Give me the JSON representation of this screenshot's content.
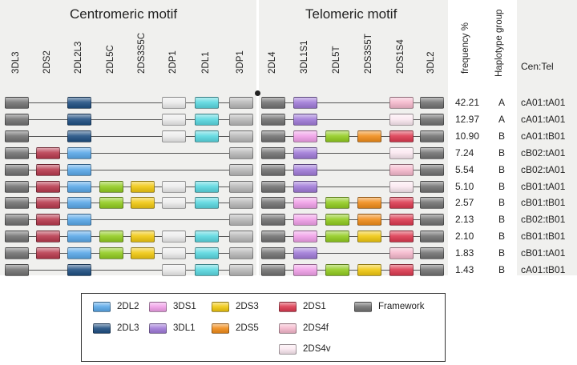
{
  "titles": {
    "centromeric": "Centromeric motif",
    "telomeric": "Telomeric motif"
  },
  "genes": [
    "3DL3",
    "2DS2",
    "2DL2L3",
    "2DL5C",
    "2DS3S5C",
    "2DP1",
    "2DL1",
    "3DP1",
    "2DL4",
    "3DL1S1",
    "2DL5T",
    "2DS3S5T",
    "2DS1S4",
    "3DL2"
  ],
  "columns": {
    "frequency": "frequency %",
    "haplotype": "Haplotype group",
    "centel": "Cen:Tel"
  },
  "colors": {
    "F": "#727272",
    "2DL2": "#5aa8e8",
    "2DL3": "#1f4f82",
    "3DS1": "#f0a0e8",
    "3DL1": "#a07ad8",
    "2DS3": "#f0c810",
    "2DS5": "#f08c1a",
    "2DS1": "#dc3a50",
    "2DS4f": "#f5b8cc",
    "2DS4v": "#fbe8f0",
    "2DL5": "#92cc20",
    "2DS2": "#b83a4e",
    "2DP1": "#ececec",
    "2DL1": "#5ad8e0",
    "3DP1": "#b8b8b8"
  },
  "rows": [
    {
      "genes": [
        "F",
        null,
        "2DL3",
        null,
        null,
        "2DP1",
        "2DL1",
        "3DP1",
        "F",
        "3DL1",
        null,
        null,
        "2DS4f",
        "F"
      ],
      "freq": "42.21",
      "group": "A",
      "centel": "cA01:tA01"
    },
    {
      "genes": [
        "F",
        null,
        "2DL3",
        null,
        null,
        "2DP1",
        "2DL1",
        "3DP1",
        "F",
        "3DL1",
        null,
        null,
        "2DS4v",
        "F"
      ],
      "freq": "12.97",
      "group": "A",
      "centel": "cA01:tA01"
    },
    {
      "genes": [
        "F",
        null,
        "2DL3",
        null,
        null,
        "2DP1",
        "2DL1",
        "3DP1",
        "F",
        "3DS1",
        "2DL5",
        "2DS5",
        "2DS1",
        "F"
      ],
      "freq": "10.90",
      "group": "B",
      "centel": "cA01:tB01"
    },
    {
      "genes": [
        "F",
        "2DS2",
        "2DL2",
        null,
        null,
        null,
        null,
        "3DP1",
        "F",
        "3DL1",
        null,
        null,
        "2DS4v",
        "F"
      ],
      "freq": "7.24",
      "group": "B",
      "centel": "cB02:tA01"
    },
    {
      "genes": [
        "F",
        "2DS2",
        "2DL2",
        null,
        null,
        null,
        null,
        "3DP1",
        "F",
        "3DL1",
        null,
        null,
        "2DS4f",
        "F"
      ],
      "freq": "5.54",
      "group": "B",
      "centel": "cB02:tA01"
    },
    {
      "genes": [
        "F",
        "2DS2",
        "2DL2",
        "2DL5",
        "2DS3",
        "2DP1",
        "2DL1",
        "3DP1",
        "F",
        "3DL1",
        null,
        null,
        "2DS4v",
        "F"
      ],
      "freq": "5.10",
      "group": "B",
      "centel": "cB01:tA01"
    },
    {
      "genes": [
        "F",
        "2DS2",
        "2DL2",
        "2DL5",
        "2DS3",
        "2DP1",
        "2DL1",
        "3DP1",
        "F",
        "3DS1",
        "2DL5",
        "2DS5",
        "2DS1",
        "F"
      ],
      "freq": "2.57",
      "group": "B",
      "centel": "cB01:tB01"
    },
    {
      "genes": [
        "F",
        "2DS2",
        "2DL2",
        null,
        null,
        null,
        null,
        "3DP1",
        "F",
        "3DS1",
        "2DL5",
        "2DS5",
        "2DS1",
        "F"
      ],
      "freq": "2.13",
      "group": "B",
      "centel": "cB02:tB01"
    },
    {
      "genes": [
        "F",
        "2DS2",
        "2DL2",
        "2DL5",
        "2DS3",
        "2DP1",
        "2DL1",
        "3DP1",
        "F",
        "3DS1",
        "2DL5",
        "2DS3",
        "2DS1",
        "F"
      ],
      "freq": "2.10",
      "group": "B",
      "centel": "cB01:tB01"
    },
    {
      "genes": [
        "F",
        "2DS2",
        "2DL2",
        "2DL5",
        "2DS3",
        "2DP1",
        "2DL1",
        "3DP1",
        "F",
        "3DL1",
        null,
        null,
        "2DS4f",
        "F"
      ],
      "freq": "1.83",
      "group": "B",
      "centel": "cB01:tA01"
    },
    {
      "genes": [
        "F",
        null,
        "2DL3",
        null,
        null,
        "2DP1",
        "2DL1",
        "3DP1",
        "F",
        "3DS1",
        "2DL5",
        "2DS3",
        "2DS1",
        "F"
      ],
      "freq": "1.43",
      "group": "B",
      "centel": "cA01:tB01"
    }
  ],
  "legend": [
    {
      "key": "2DL2",
      "label": "2DL2"
    },
    {
      "key": "2DL3",
      "label": "2DL3"
    },
    {
      "key": "3DS1",
      "label": "3DS1"
    },
    {
      "key": "3DL1",
      "label": "3DL1"
    },
    {
      "key": "2DS3",
      "label": "2DS3"
    },
    {
      "key": "2DS5",
      "label": "2DS5"
    },
    {
      "key": "2DS1",
      "label": "2DS1"
    },
    {
      "key": "2DS4f",
      "label": "2DS4f"
    },
    {
      "key": "2DS4v",
      "label": "2DS4v"
    },
    {
      "key": "F",
      "label": "Framework"
    }
  ]
}
